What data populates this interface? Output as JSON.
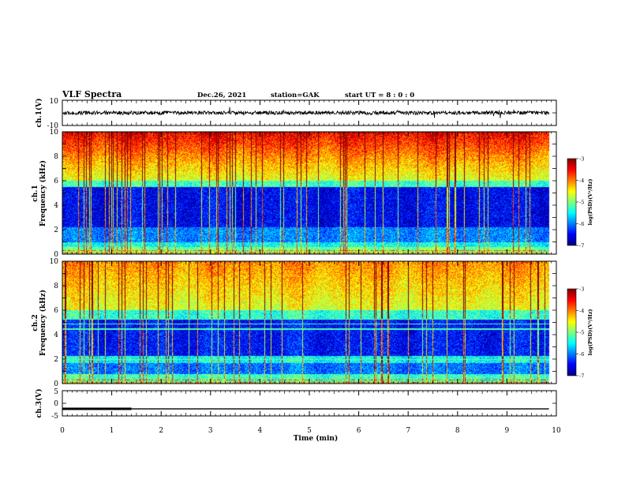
{
  "header": {
    "title": "VLF Spectra",
    "date": "Dec.26, 2021",
    "station": "station=GAK",
    "start": "start  UT =   8 : 0  : 0"
  },
  "chart_data": [
    {
      "type": "line",
      "panel": "ch1-waveform",
      "ylabel": "ch.1(V)",
      "ylim": [
        -10,
        10
      ],
      "yticks": [
        "10",
        "-10"
      ],
      "xlim": [
        0,
        10
      ],
      "baseline": 0,
      "noise_amplitude": 1.5,
      "spike_amplitude": 5,
      "data_end": 9.85
    },
    {
      "type": "heatmap",
      "panel": "ch1-spectrogram",
      "ylabel_channel": "ch.1",
      "ylabel": "Frequency  (kHz)",
      "xlim": [
        0,
        10
      ],
      "ylim": [
        0,
        10
      ],
      "yticks": [
        "0",
        "2",
        "4",
        "6",
        "8",
        "10"
      ],
      "data_end": 9.85,
      "colorbar": {
        "label": "log(PSD)(V²/Hz)",
        "range": [
          -7,
          -3
        ],
        "ticks": [
          "-3",
          "-4",
          "-5",
          "-6",
          "-7"
        ]
      }
    },
    {
      "type": "heatmap",
      "panel": "ch2-spectrogram",
      "ylabel_channel": "ch.2",
      "ylabel": "Frequency  (kHz)",
      "xlim": [
        0,
        10
      ],
      "ylim": [
        0,
        10
      ],
      "yticks": [
        "0",
        "2",
        "4",
        "6",
        "8",
        "10"
      ],
      "data_end": 9.85,
      "colorbar": {
        "label": "log(PSD)(V²/Hz)",
        "range": [
          -7,
          -3
        ],
        "ticks": [
          "-3",
          "-4",
          "-5",
          "-6",
          "-7"
        ]
      }
    },
    {
      "type": "line",
      "panel": "ch3-level",
      "ylabel": "ch.3(V)",
      "ylim": [
        -5,
        5
      ],
      "yticks": [
        "5",
        "0",
        "-5"
      ],
      "xlim": [
        0,
        10
      ],
      "xlabel": "Time  (min)",
      "xticks": [
        "0",
        "1",
        "2",
        "3",
        "4",
        "5",
        "6",
        "7",
        "8",
        "9",
        "10"
      ],
      "level": -2.2,
      "thick_until": 1.4,
      "data_end": 9.85
    }
  ],
  "colors": {
    "axis": "#000000",
    "trace": "#000000",
    "background": "#ffffff"
  }
}
